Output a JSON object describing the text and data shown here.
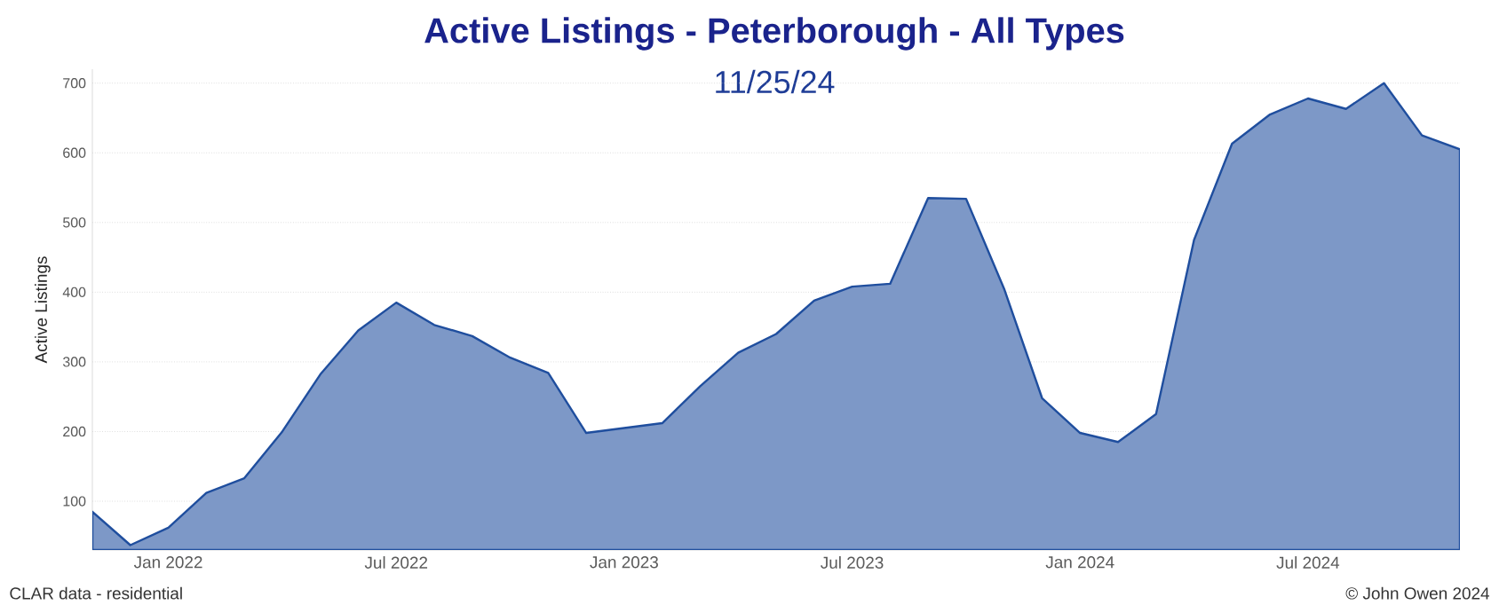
{
  "chart_data": {
    "type": "area",
    "title": "Active Listings - Peterborough - All Types",
    "subtitle": "11/25/24",
    "ylabel": "Active Listings",
    "x": [
      "2021-11",
      "2021-12",
      "2022-01",
      "2022-02",
      "2022-03",
      "2022-04",
      "2022-05",
      "2022-06",
      "2022-07",
      "2022-08",
      "2022-09",
      "2022-10",
      "2022-11",
      "2022-12",
      "2023-01",
      "2023-02",
      "2023-03",
      "2023-04",
      "2023-05",
      "2023-06",
      "2023-07",
      "2023-08",
      "2023-09",
      "2023-10",
      "2023-11",
      "2023-12",
      "2024-01",
      "2024-02",
      "2024-03",
      "2024-04",
      "2024-05",
      "2024-06",
      "2024-07",
      "2024-08",
      "2024-09",
      "2024-10",
      "2024-11"
    ],
    "series": [
      {
        "color": "#1f4e9e",
        "values": [
          85,
          37,
          62,
          112,
          133,
          200,
          282,
          345,
          385,
          353,
          337,
          306,
          284,
          198,
          205,
          212,
          265,
          313,
          340,
          388,
          408,
          412,
          535,
          534,
          405,
          248,
          198,
          185,
          225,
          475,
          613,
          655,
          678,
          663,
          700,
          625,
          605
        ]
      }
    ],
    "xlim": [
      "2021-11",
      "2024-11"
    ],
    "xticks": [
      {
        "value": "2022-01",
        "label": "Jan 2022"
      },
      {
        "value": "2022-07",
        "label": "Jul 2022"
      },
      {
        "value": "2023-01",
        "label": "Jan 2023"
      },
      {
        "value": "2023-07",
        "label": "Jul 2023"
      },
      {
        "value": "2024-01",
        "label": "Jan 2024"
      },
      {
        "value": "2024-07",
        "label": "Jul 2024"
      }
    ],
    "ylim": [
      30,
      720
    ],
    "yticks": [
      100,
      200,
      300,
      400,
      500,
      600,
      700
    ],
    "grid": "y",
    "annotations": [
      "CLAR data - residential",
      "© John Owen 2024"
    ]
  }
}
